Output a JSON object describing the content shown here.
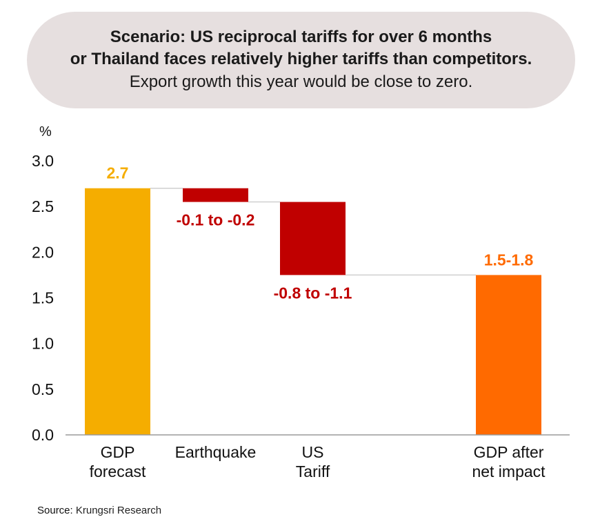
{
  "banner": {
    "line1": "Scenario: US reciprocal tariffs for over 6 months",
    "line2": "or Thailand faces relatively higher tariffs than competitors.",
    "line3": "Export growth this year would be close to zero."
  },
  "source": {
    "label": "Source:",
    "text": "Krungsri Research"
  },
  "chart_data": {
    "type": "bar",
    "subtype": "waterfall",
    "ylabel": "%",
    "ylim": [
      0,
      3.0
    ],
    "yticks": [
      "0.0",
      "0.5",
      "1.0",
      "1.5",
      "2.0",
      "2.5",
      "3.0"
    ],
    "grid": false,
    "bars": [
      {
        "category_lines": [
          "GDP",
          "forecast"
        ],
        "start": 0,
        "end": 2.7,
        "data_label": "2.7",
        "color": "#f5ad00",
        "label_color": "#f5ad00",
        "label_pos": "above"
      },
      {
        "category_lines": [
          "Earthquake"
        ],
        "start": 2.7,
        "end": 2.55,
        "data_label": "-0.1 to -0.2",
        "color": "#c00000",
        "label_color": "#c00000",
        "label_pos": "below"
      },
      {
        "category_lines": [
          "US",
          "Tariff"
        ],
        "start": 2.55,
        "end": 1.75,
        "data_label": "-0.8 to -1.1",
        "color": "#c00000",
        "label_color": "#c00000",
        "label_pos": "below"
      },
      {
        "category_lines": [
          "GDP after",
          "net impact"
        ],
        "start": 0,
        "end": 1.75,
        "data_label": "1.5-1.8",
        "color": "#ff6a00",
        "label_color": "#ff6a00",
        "label_pos": "above"
      }
    ]
  }
}
